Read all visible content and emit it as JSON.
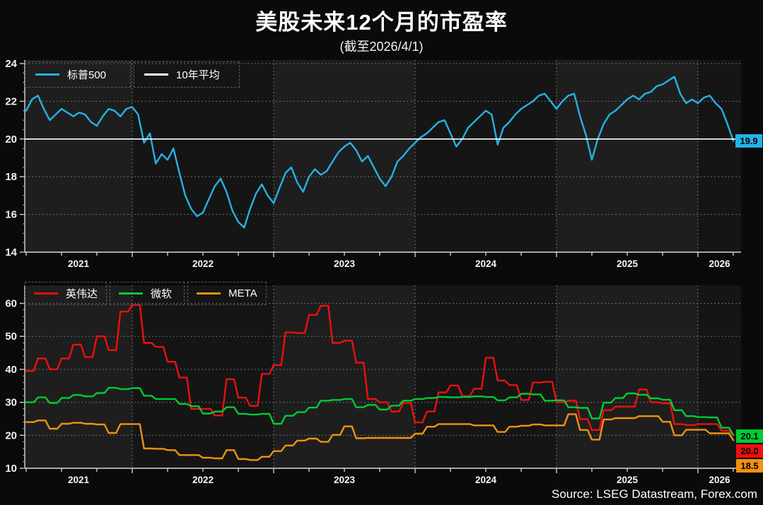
{
  "title": "美股未来12个月的市盈率",
  "subtitle": "(截至2026/4/1)",
  "source": "Source: LSEG Datastream, Forex.com",
  "colors": {
    "page_bg": "#0a0a0a",
    "band_dark": "#151515",
    "band_light": "#1e1e1e",
    "grid": "#6e6e6e",
    "spine": "#d8d8d8",
    "tick_text": "#f2f2f2",
    "sp500": "#25b2e5",
    "avg": "#ffffff",
    "nvda": "#ee0f0f",
    "msft": "#00cc33",
    "meta": "#f0920e"
  },
  "legend_top": [
    {
      "label": "标普500",
      "color": "#25b2e5"
    },
    {
      "label": "10年平均",
      "color": "#ffffff"
    }
  ],
  "legend_bottom": [
    {
      "label": "英伟达",
      "color": "#ee0f0f"
    },
    {
      "label": "微软",
      "color": "#00cc33"
    },
    {
      "label": "META",
      "color": "#f0920e"
    }
  ],
  "chart_data": [
    {
      "type": "line",
      "panel": "top",
      "x_start": 2021.25,
      "x_end": 2026.25,
      "x_ticks": [
        2021,
        2022,
        2023,
        2024,
        2025,
        2026
      ],
      "ylim": [
        14,
        24.2
      ],
      "yticks": [
        24,
        22,
        20,
        18,
        16,
        14
      ],
      "grid": true,
      "legend_position": "top-left",
      "series": [
        {
          "name": "标普500",
          "color": "#25b2e5",
          "interpolation": "linear",
          "points_per_year": 24,
          "values": [
            21.5,
            22.1,
            22.3,
            21.6,
            21.0,
            21.3,
            21.6,
            21.4,
            21.2,
            21.4,
            21.3,
            20.9,
            20.7,
            21.2,
            21.6,
            21.5,
            21.2,
            21.6,
            21.7,
            21.3,
            19.8,
            20.3,
            18.7,
            19.2,
            18.9,
            19.5,
            18.2,
            17.0,
            16.3,
            15.9,
            16.1,
            16.8,
            17.5,
            17.9,
            17.2,
            16.2,
            15.6,
            15.3,
            16.3,
            17.1,
            17.6,
            17.0,
            16.6,
            17.4,
            18.2,
            18.5,
            17.7,
            17.2,
            18.0,
            18.4,
            18.1,
            18.3,
            18.8,
            19.3,
            19.6,
            19.8,
            19.4,
            18.8,
            19.1,
            18.5,
            17.9,
            17.5,
            18.0,
            18.8,
            19.1,
            19.5,
            19.8,
            20.1,
            20.3,
            20.6,
            20.9,
            21.0,
            20.3,
            19.6,
            20.0,
            20.6,
            20.9,
            21.2,
            21.5,
            21.3,
            19.7,
            20.6,
            20.9,
            21.3,
            21.6,
            21.8,
            22.0,
            22.3,
            22.4,
            22.0,
            21.6,
            22.0,
            22.3,
            22.4,
            21.2,
            20.2,
            18.9,
            20.0,
            20.8,
            21.3,
            21.5,
            21.8,
            22.1,
            22.3,
            22.1,
            22.4,
            22.5,
            22.8,
            22.9,
            23.1,
            23.3,
            22.4,
            21.9,
            22.1,
            21.9,
            22.2,
            22.3,
            21.9,
            21.6,
            20.8,
            19.9
          ]
        },
        {
          "name": "10年平均",
          "color": "#ffffff",
          "type": "hline",
          "value": 20.0
        }
      ],
      "end_label": {
        "text": "19.9",
        "bg": "#25b2e5"
      }
    },
    {
      "type": "line",
      "panel": "bottom",
      "x_start": 2021.25,
      "x_end": 2026.25,
      "x_ticks": [
        2021,
        2022,
        2023,
        2024,
        2025,
        2026
      ],
      "ylim": [
        10,
        65.4
      ],
      "yticks": [
        60,
        50,
        40,
        30,
        20,
        10
      ],
      "grid": true,
      "legend_position": "top-left",
      "series": [
        {
          "name": "英伟达",
          "color": "#ee0f0f",
          "interpolation": "step",
          "points_per_year": 12,
          "values": [
            39.5,
            43.3,
            40.0,
            43.3,
            47.5,
            43.7,
            50.0,
            45.8,
            57.5,
            59.5,
            48.0,
            46.8,
            42.3,
            37.5,
            28.0,
            28.0,
            26.0,
            37.0,
            31.4,
            28.9,
            38.6,
            41.3,
            51.2,
            51.0,
            56.5,
            59.3,
            48.0,
            48.7,
            42.0,
            31.0,
            30.0,
            27.2,
            29.8,
            23.9,
            27.2,
            33.0,
            35.1,
            31.9,
            34.1,
            43.5,
            36.6,
            35.2,
            30.7,
            36.0,
            36.2,
            30.0,
            30.5,
            24.9,
            21.6,
            27.6,
            28.7,
            28.7,
            33.9,
            30.0,
            29.7,
            23.4,
            23.1,
            23.4,
            23.4,
            21.4,
            20.0
          ]
        },
        {
          "name": "微软",
          "color": "#00cc33",
          "interpolation": "step",
          "points_per_year": 12,
          "values": [
            30.0,
            31.5,
            29.8,
            31.3,
            32.2,
            31.8,
            32.8,
            34.4,
            34.0,
            34.3,
            32.0,
            31.0,
            31.0,
            29.5,
            28.8,
            26.6,
            27.2,
            28.5,
            26.5,
            26.3,
            26.5,
            23.5,
            25.9,
            27.0,
            28.4,
            30.5,
            30.7,
            31.0,
            28.5,
            29.2,
            27.8,
            29.0,
            30.5,
            31.0,
            31.3,
            31.6,
            31.5,
            31.6,
            31.8,
            31.6,
            30.6,
            31.5,
            32.6,
            32.4,
            30.5,
            30.6,
            28.5,
            28.3,
            25.1,
            29.9,
            31.3,
            32.7,
            32.3,
            31.2,
            30.8,
            27.6,
            25.8,
            25.5,
            25.4,
            22.3,
            20.1
          ]
        },
        {
          "name": "META",
          "color": "#f0920e",
          "interpolation": "step",
          "points_per_year": 12,
          "values": [
            24.0,
            24.5,
            22.0,
            23.5,
            23.8,
            23.5,
            23.3,
            20.7,
            23.4,
            23.4,
            16.0,
            15.9,
            15.5,
            14.0,
            14.0,
            13.2,
            13.0,
            15.5,
            12.8,
            12.5,
            13.5,
            15.2,
            16.9,
            18.4,
            19.0,
            18.0,
            20.1,
            22.7,
            19.1,
            19.2,
            19.2,
            19.2,
            19.2,
            20.5,
            22.6,
            23.4,
            23.4,
            23.4,
            23.0,
            23.0,
            21.0,
            22.6,
            22.9,
            23.3,
            23.0,
            23.0,
            26.4,
            21.6,
            18.7,
            24.8,
            25.2,
            25.2,
            25.8,
            25.8,
            24.1,
            20.0,
            21.7,
            21.7,
            20.6,
            20.6,
            18.5
          ]
        }
      ],
      "end_labels": [
        {
          "series": "微软",
          "text": "20.1",
          "bg": "#00cc33"
        },
        {
          "series": "英伟达",
          "text": "20.0",
          "bg": "#ee0f0f"
        },
        {
          "series": "META",
          "text": "18.5",
          "bg": "#f0920e"
        }
      ]
    }
  ]
}
